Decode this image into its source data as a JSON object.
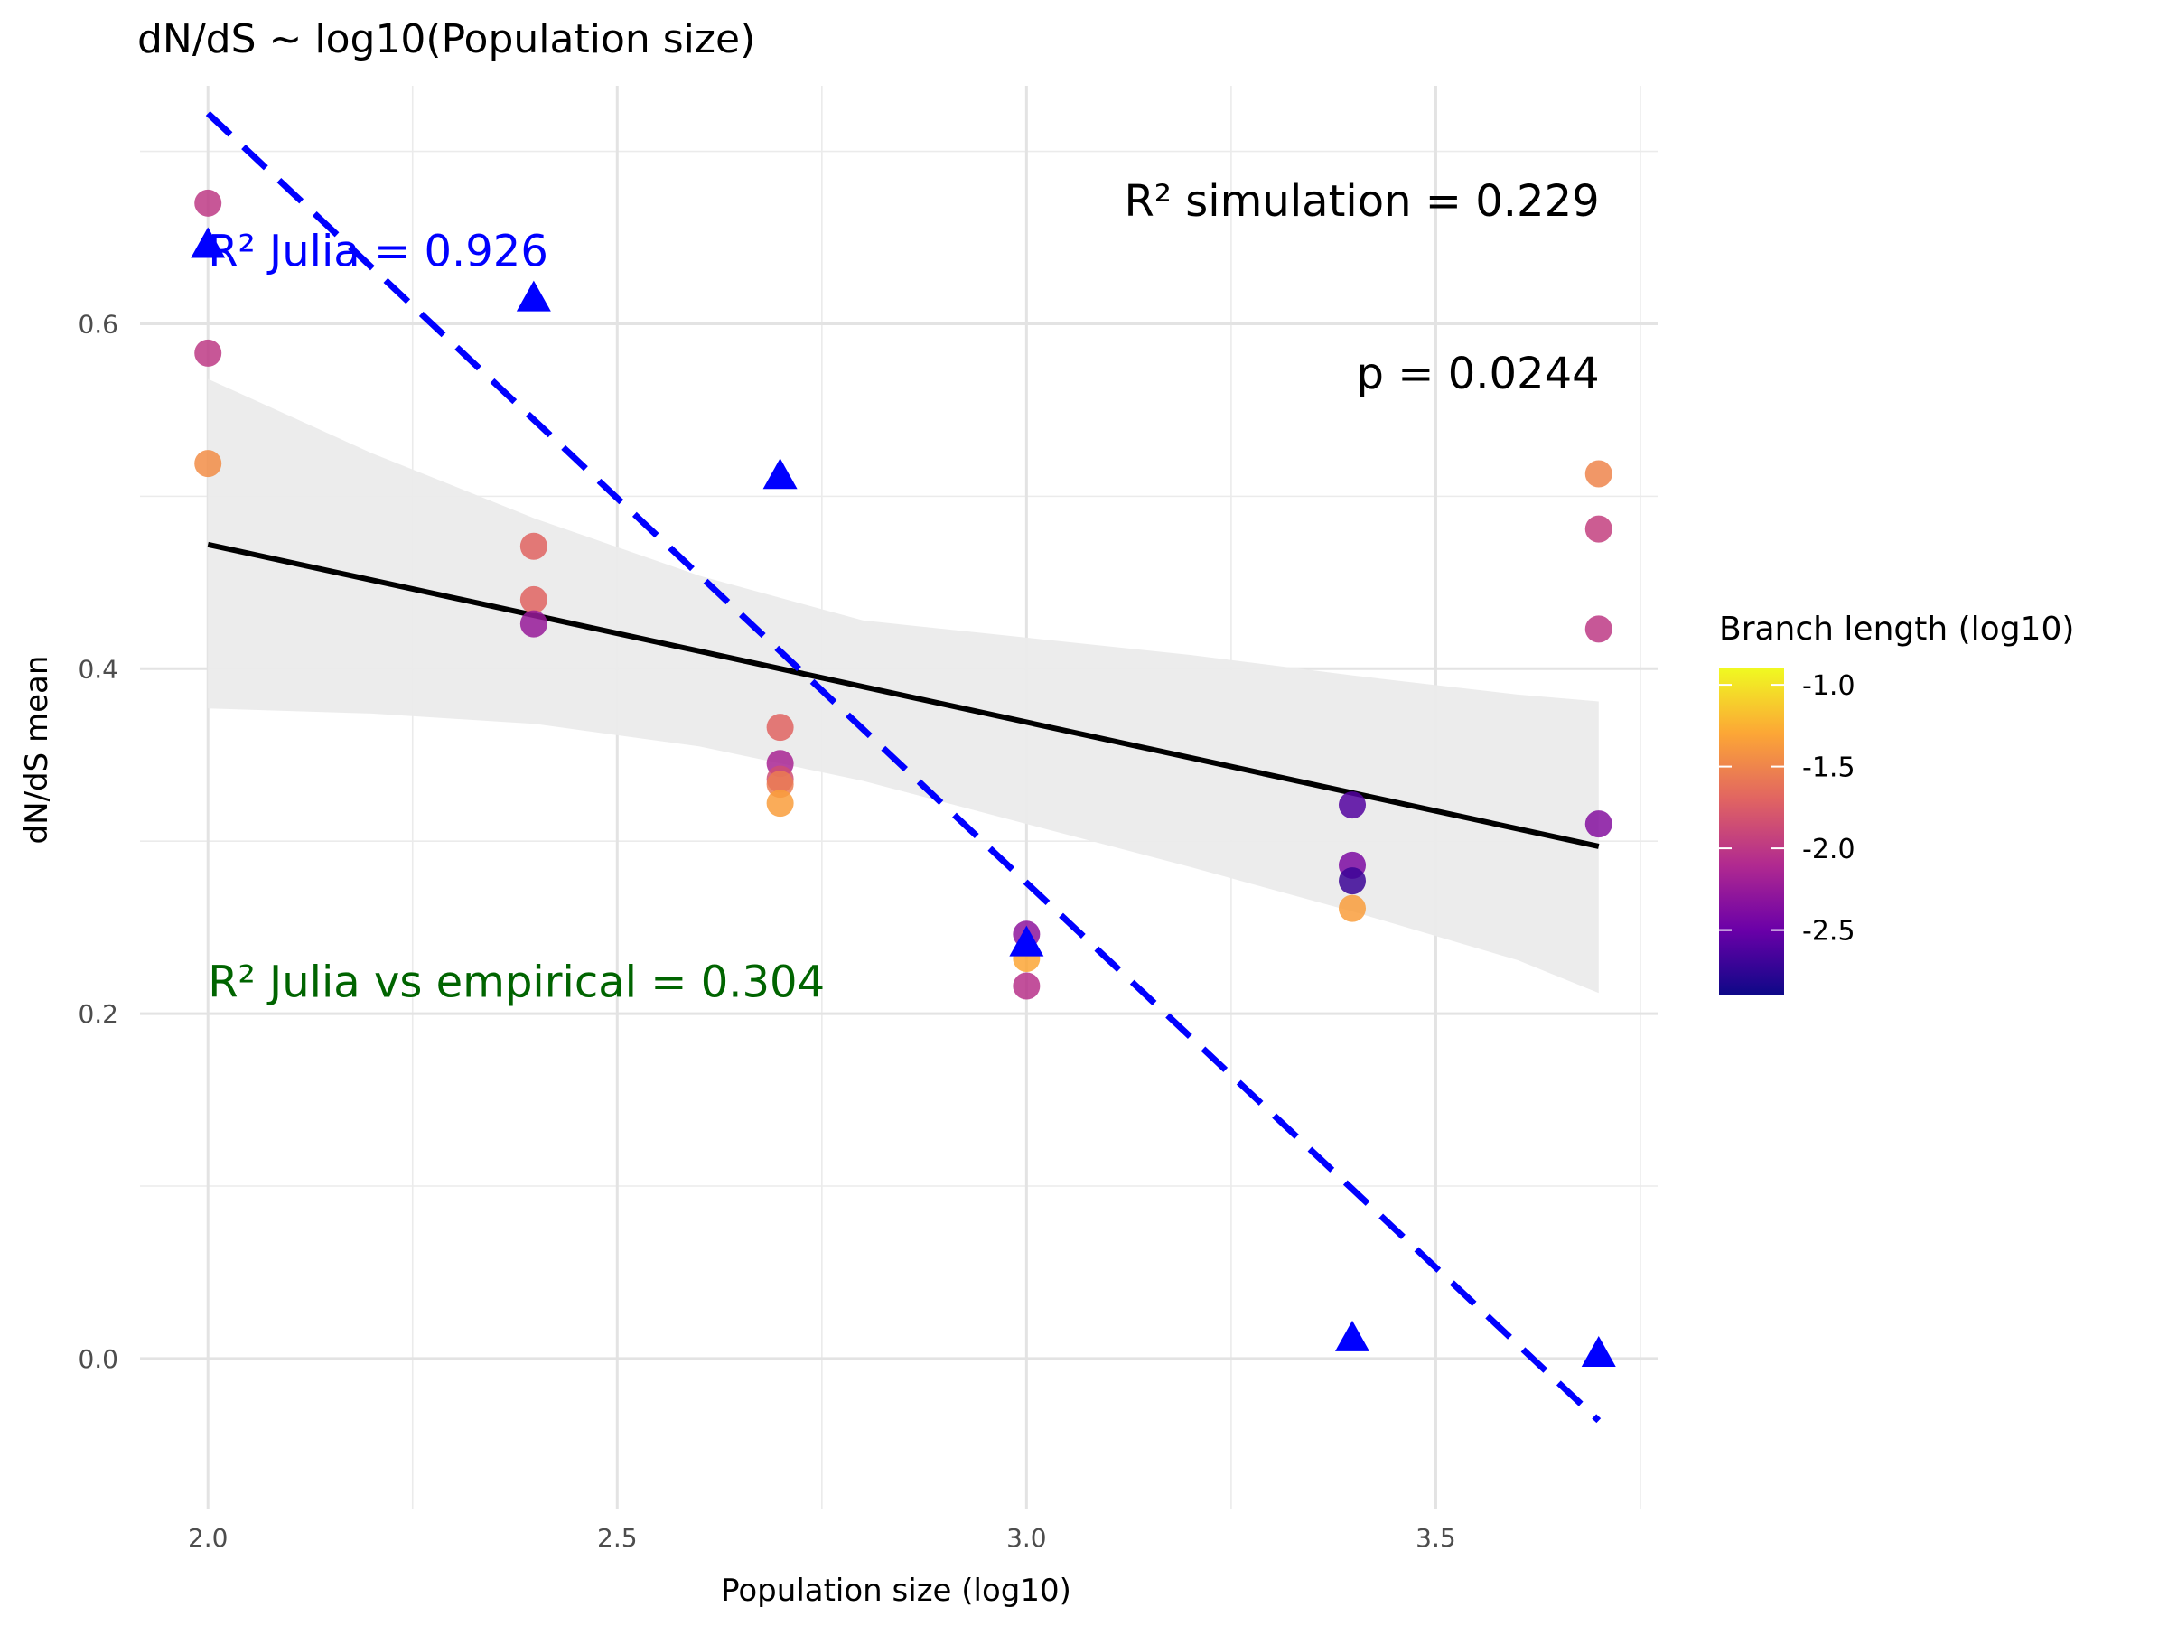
{
  "chart_data": {
    "type": "scatter",
    "title": "dN/dS ~ log10(Population size)",
    "xlabel": "Population size (log10)",
    "ylabel": "dN/dS mean",
    "xlim": [
      1.917,
      3.771
    ],
    "ylim": [
      -0.087,
      0.738
    ],
    "x_ticks": [
      2.0,
      2.5,
      3.0,
      3.5
    ],
    "x_tick_labels": [
      "2.0",
      "2.5",
      "3.0",
      "3.5"
    ],
    "x_minor_ticks": [
      2.25,
      2.75,
      3.25,
      3.75
    ],
    "y_ticks": [
      0.0,
      0.2,
      0.4,
      0.6
    ],
    "y_tick_labels": [
      "0.0",
      "0.2",
      "0.4",
      "0.6"
    ],
    "y_minor_ticks": [
      0.1,
      0.3,
      0.5,
      0.7
    ],
    "grid": true,
    "series": [
      {
        "kind": "points",
        "marker": "circle",
        "points": [
          {
            "x": 2.0,
            "y": 0.67,
            "c": -2.0
          },
          {
            "x": 2.0,
            "y": 0.583,
            "c": -2.0
          },
          {
            "x": 2.0,
            "y": 0.519,
            "c": -1.45
          },
          {
            "x": 2.398,
            "y": 0.471,
            "c": -1.7
          },
          {
            "x": 2.398,
            "y": 0.44,
            "c": -1.7
          },
          {
            "x": 2.398,
            "y": 0.426,
            "c": -2.25
          },
          {
            "x": 2.699,
            "y": 0.366,
            "c": -1.7
          },
          {
            "x": 2.699,
            "y": 0.345,
            "c": -2.15
          },
          {
            "x": 2.699,
            "y": 0.336,
            "c": -1.85
          },
          {
            "x": 2.699,
            "y": 0.333,
            "c": -1.55
          },
          {
            "x": 2.699,
            "y": 0.322,
            "c": -1.35
          },
          {
            "x": 3.0,
            "y": 0.246,
            "c": -2.3
          },
          {
            "x": 3.0,
            "y": 0.232,
            "c": -1.3
          },
          {
            "x": 3.0,
            "y": 0.216,
            "c": -2.05
          },
          {
            "x": 3.398,
            "y": 0.321,
            "c": -2.6
          },
          {
            "x": 3.398,
            "y": 0.286,
            "c": -2.4
          },
          {
            "x": 3.398,
            "y": 0.277,
            "c": -2.7
          },
          {
            "x": 3.398,
            "y": 0.261,
            "c": -1.35
          },
          {
            "x": 3.699,
            "y": 0.513,
            "c": -1.5
          },
          {
            "x": 3.699,
            "y": 0.481,
            "c": -1.95
          },
          {
            "x": 3.699,
            "y": 0.423,
            "c": -2.0
          },
          {
            "x": 3.699,
            "y": 0.31,
            "c": -2.35
          }
        ]
      },
      {
        "kind": "points",
        "marker": "triangle",
        "color": "#0000ff",
        "points": [
          {
            "x": 2.0,
            "y": 0.645
          },
          {
            "x": 2.398,
            "y": 0.614
          },
          {
            "x": 2.699,
            "y": 0.511
          },
          {
            "x": 3.0,
            "y": 0.24
          },
          {
            "x": 3.398,
            "y": 0.011
          },
          {
            "x": 3.699,
            "y": 0.002
          }
        ]
      },
      {
        "kind": "fit_line",
        "color": "#000000",
        "x": [
          2.0,
          3.699
        ],
        "y": [
          0.472,
          0.297
        ],
        "ribbon": {
          "color": "#ebebeb",
          "x": [
            2.0,
            2.2,
            2.4,
            2.6,
            2.8,
            3.0,
            3.2,
            3.4,
            3.6,
            3.699
          ],
          "lower": [
            0.377,
            0.374,
            0.368,
            0.355,
            0.335,
            0.31,
            0.285,
            0.259,
            0.231,
            0.212
          ],
          "upper": [
            0.568,
            0.525,
            0.487,
            0.454,
            0.428,
            0.418,
            0.408,
            0.396,
            0.385,
            0.381
          ]
        }
      },
      {
        "kind": "dashed_line",
        "color": "#0000ff",
        "x": [
          2.0,
          3.699
        ],
        "y": [
          0.722,
          -0.036
        ]
      }
    ],
    "colorbar": {
      "title": "Branch length (log10)",
      "range": [
        -2.9,
        -0.9
      ],
      "ticks": [
        -1.0,
        -1.5,
        -2.0,
        -2.5
      ],
      "tick_labels": [
        "-1.0",
        "-1.5",
        "-2.0",
        "-2.5"
      ],
      "colors": [
        "#0d0887",
        "#6a00a8",
        "#b12a90",
        "#e16462",
        "#fca636",
        "#f0f921"
      ]
    },
    "annotations": [
      {
        "text": "R² simulation = 0.229",
        "x": 3.7,
        "y": 0.671,
        "anchor": "end",
        "color": "#000000"
      },
      {
        "text": "p = 0.0244",
        "x": 3.7,
        "y": 0.571,
        "anchor": "end",
        "color": "#000000"
      },
      {
        "text": "R² Julia = 0.926",
        "x": 2.0,
        "y": 0.642,
        "anchor": "start",
        "color": "#0000ff"
      },
      {
        "text": "R² Julia vs empirical = 0.304",
        "x": 2.0,
        "y": 0.218,
        "anchor": "start",
        "color": "#006400"
      }
    ]
  }
}
